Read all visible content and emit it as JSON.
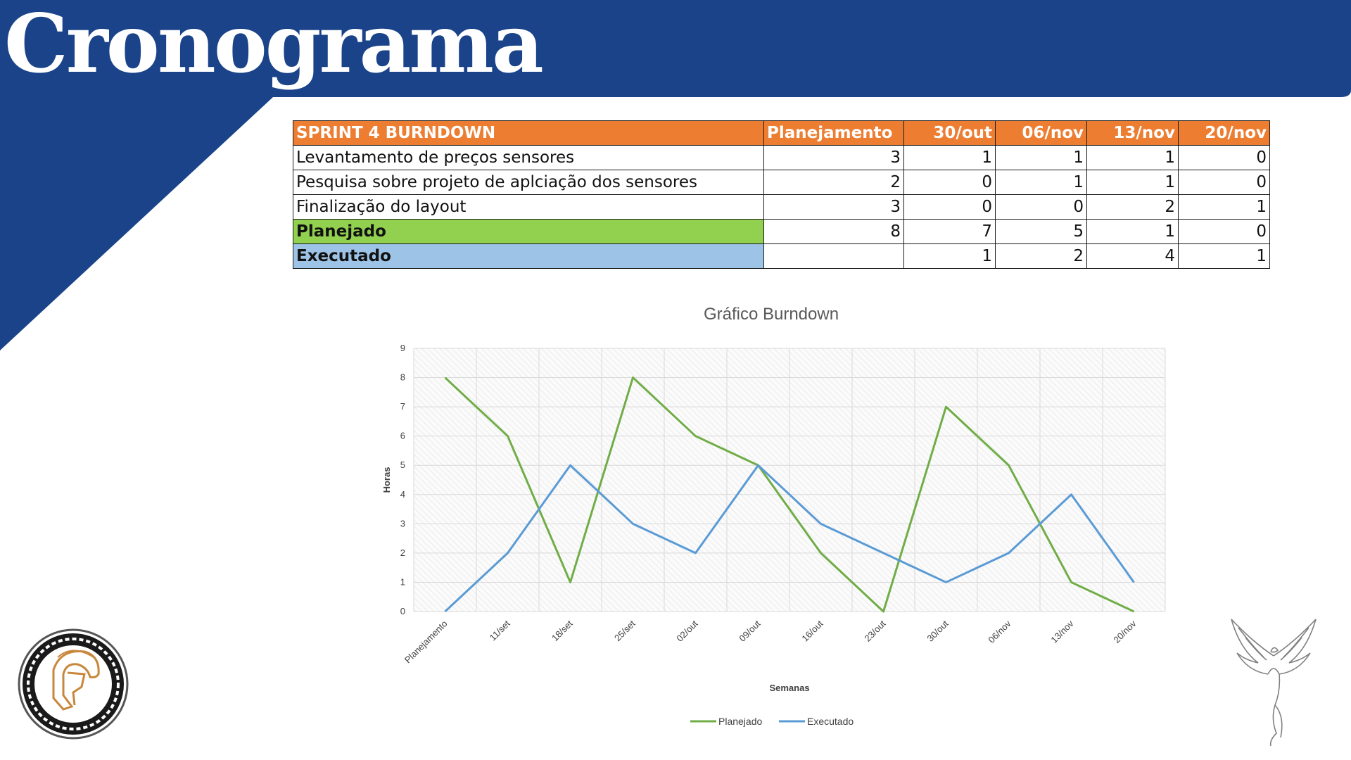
{
  "page": {
    "title": "Cronograma"
  },
  "colors": {
    "navy": "#1a438a",
    "orange": "#ed7d31",
    "green": "#92d050",
    "blue": "#9dc3e6",
    "line_green": "#70ad47",
    "line_blue": "#5b9bd5"
  },
  "table": {
    "headers": [
      "SPRINT 4 BURNDOWN",
      "Planejamento",
      "30/out",
      "06/nov",
      "13/nov",
      "20/nov"
    ],
    "rows": [
      {
        "label": "Levantamento de preços sensores",
        "values": [
          "3",
          "1",
          "1",
          "1",
          "0"
        ]
      },
      {
        "label": "Pesquisa sobre projeto de aplciação dos sensores",
        "values": [
          "2",
          "0",
          "1",
          "1",
          "0"
        ]
      },
      {
        "label": "Finalização do layout",
        "values": [
          "3",
          "0",
          "0",
          "2",
          "1"
        ]
      }
    ],
    "planned": {
      "label": "Planejado",
      "values": [
        "8",
        "7",
        "5",
        "1",
        "0"
      ]
    },
    "executed": {
      "label": "Executado",
      "values": [
        "",
        "1",
        "2",
        "4",
        "1"
      ]
    }
  },
  "chart_data": {
    "type": "line",
    "title": "Gráfico Burndown",
    "xlabel": "Semanas",
    "ylabel": "Horas",
    "ylim": [
      0,
      9
    ],
    "yticks": [
      "0",
      "1",
      "2",
      "3",
      "4",
      "5",
      "6",
      "7",
      "8",
      "9"
    ],
    "categories": [
      "Planejamento",
      "11/set",
      "18/set",
      "25/set",
      "02/out",
      "09/out",
      "16/out",
      "23/out",
      "30/out",
      "06/nov",
      "13/nov",
      "20/nov"
    ],
    "series": [
      {
        "name": "Planejado",
        "color": "#70ad47",
        "values": [
          8,
          6,
          1,
          8,
          6,
          5,
          2,
          0,
          7,
          5,
          1,
          0
        ]
      },
      {
        "name": "Executado",
        "color": "#5b9bd5",
        "values": [
          0,
          2,
          5,
          3,
          2,
          5,
          3,
          2,
          1,
          2,
          4,
          1
        ]
      }
    ],
    "grid": true,
    "legend": "bottom"
  },
  "icons": {
    "left_logo": "spartan-helmet-logo",
    "right_logo": "phoenix-logo"
  }
}
